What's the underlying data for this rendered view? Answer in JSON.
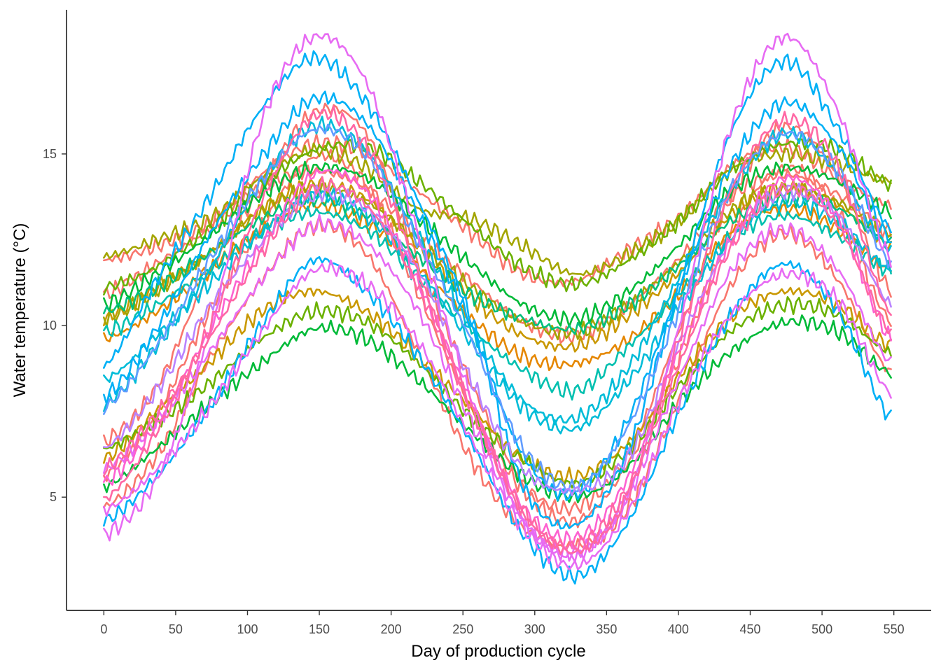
{
  "chart_data": {
    "type": "line",
    "xlabel": "Day of production cycle",
    "ylabel": "Water temperature (°C)",
    "xlim": [
      -26,
      576
    ],
    "ylim": [
      1.7,
      19.2
    ],
    "x_ticks": [
      0,
      50,
      100,
      150,
      200,
      250,
      300,
      350,
      400,
      450,
      500,
      550
    ],
    "y_ticks": [
      5,
      10,
      15
    ],
    "grid": false,
    "legend": "none",
    "x_range": [
      0,
      548
    ],
    "series": [
      {
        "color": "#F8766D",
        "values": [
          11.9,
          12.3,
          13.0,
          14.4,
          15.3,
          15.0,
          13.9,
          12.7,
          11.5,
          11.3,
          12.2,
          13.2,
          14.7,
          15.2,
          14.3,
          13.5
        ]
      },
      {
        "color": "#F8766D",
        "values": [
          6.6,
          8.2,
          11.5,
          14.0,
          16.2,
          15.6,
          11.8,
          8.3,
          5.4,
          4.7,
          6.3,
          10.0,
          13.9,
          15.8,
          14.3,
          11.0
        ]
      },
      {
        "color": "#F8766D",
        "values": [
          5.6,
          7.4,
          10.4,
          12.9,
          14.9,
          14.1,
          10.9,
          7.6,
          5.2,
          4.3,
          6.0,
          9.2,
          12.9,
          14.6,
          13.3,
          10.1
        ]
      },
      {
        "color": "#F8766D",
        "values": [
          4.7,
          6.2,
          9.0,
          11.3,
          12.9,
          12.1,
          9.2,
          6.1,
          4.1,
          3.6,
          4.7,
          8.0,
          11.3,
          12.7,
          11.3,
          8.6
        ]
      },
      {
        "color": "#F8766D",
        "values": [
          10.9,
          11.8,
          12.8,
          14.0,
          14.5,
          14.0,
          12.6,
          11.3,
          10.1,
          9.7,
          10.6,
          12.0,
          13.8,
          14.4,
          13.8,
          12.7
        ]
      },
      {
        "color": "#E58700",
        "values": [
          9.6,
          10.4,
          11.6,
          12.8,
          13.5,
          13.0,
          11.7,
          10.2,
          9.1,
          8.9,
          9.6,
          11.0,
          12.8,
          13.4,
          12.8,
          11.6
        ]
      },
      {
        "color": "#C99800",
        "values": [
          10.2,
          11.1,
          12.1,
          13.4,
          14.1,
          13.7,
          12.3,
          10.8,
          9.7,
          9.4,
          10.3,
          11.6,
          13.3,
          14.0,
          13.5,
          12.3
        ]
      },
      {
        "color": "#C99800",
        "values": [
          6.1,
          7.5,
          8.9,
          10.4,
          11.0,
          10.4,
          9.1,
          7.6,
          6.1,
          5.6,
          6.6,
          8.6,
          10.3,
          11.0,
          10.6,
          9.4
        ]
      },
      {
        "color": "#A3A500",
        "values": [
          12.0,
          12.5,
          13.1,
          14.3,
          15.1,
          14.6,
          13.4,
          13.1,
          12.3,
          11.5,
          12.1,
          13.1,
          14.6,
          15.0,
          14.7,
          14.2
        ]
      },
      {
        "color": "#A3A500",
        "values": [
          10.2,
          11.0,
          12.1,
          13.3,
          14.0,
          13.6,
          12.4,
          11.1,
          10.1,
          9.8,
          10.6,
          11.9,
          13.4,
          14.0,
          13.6,
          12.7
        ]
      },
      {
        "color": "#6BB100",
        "values": [
          11.1,
          11.7,
          12.8,
          14.1,
          15.1,
          15.2,
          14.2,
          12.9,
          11.7,
          11.2,
          11.9,
          13.1,
          14.6,
          15.3,
          15.1,
          14.1
        ]
      },
      {
        "color": "#6BB100",
        "values": [
          6.4,
          7.2,
          8.3,
          9.6,
          10.4,
          10.1,
          8.9,
          7.3,
          6.1,
          5.4,
          6.4,
          8.3,
          9.9,
          10.6,
          10.3,
          9.2
        ]
      },
      {
        "color": "#00BA38",
        "values": [
          10.6,
          11.5,
          12.6,
          13.8,
          14.6,
          14.3,
          13.1,
          11.8,
          10.6,
          10.2,
          11.0,
          12.4,
          14.0,
          14.6,
          14.2,
          13.3
        ]
      },
      {
        "color": "#00BA38",
        "values": [
          5.3,
          6.4,
          7.7,
          8.9,
          9.9,
          9.6,
          8.4,
          6.9,
          5.6,
          5.0,
          5.9,
          7.8,
          9.3,
          10.1,
          9.8,
          8.6
        ]
      },
      {
        "color": "#00BF7D",
        "values": [
          10.4,
          11.1,
          12.1,
          13.1,
          13.7,
          13.2,
          12.0,
          10.9,
          10.2,
          9.9,
          10.6,
          11.8,
          13.1,
          13.7,
          13.4,
          12.4
        ]
      },
      {
        "color": "#00C0AF",
        "values": [
          9.8,
          10.6,
          11.6,
          12.7,
          13.3,
          12.8,
          11.4,
          9.9,
          8.7,
          8.1,
          9.4,
          11.0,
          12.6,
          13.2,
          12.6,
          11.6
        ]
      },
      {
        "color": "#00BCD8",
        "values": [
          8.4,
          9.7,
          11.2,
          12.7,
          13.8,
          13.2,
          11.6,
          9.5,
          7.6,
          7.0,
          8.4,
          10.6,
          12.6,
          13.6,
          13.0,
          11.6
        ]
      },
      {
        "color": "#00BCD8",
        "values": [
          7.7,
          9.4,
          11.6,
          14.2,
          15.8,
          15.1,
          12.6,
          9.9,
          7.8,
          7.3,
          8.8,
          11.5,
          14.1,
          15.6,
          14.4,
          12.2
        ]
      },
      {
        "color": "#00B0F6",
        "values": [
          4.3,
          5.6,
          7.6,
          10.0,
          11.9,
          11.0,
          9.1,
          6.6,
          3.9,
          2.7,
          4.3,
          7.6,
          10.4,
          11.8,
          10.4,
          7.3
        ]
      },
      {
        "color": "#00B0F6",
        "values": [
          8.8,
          11.3,
          13.7,
          16.3,
          17.8,
          16.5,
          13.6,
          10.2,
          5.3,
          4.2,
          6.4,
          11.3,
          15.8,
          17.7,
          15.7,
          12.8
        ]
      },
      {
        "color": "#00B0F6",
        "values": [
          7.9,
          9.9,
          12.6,
          14.9,
          16.6,
          15.9,
          13.2,
          10.0,
          6.2,
          5.1,
          7.3,
          11.2,
          14.8,
          16.5,
          15.2,
          12.5
        ]
      },
      {
        "color": "#619CFF",
        "values": [
          7.6,
          9.4,
          11.9,
          14.2,
          15.7,
          15.0,
          12.4,
          9.6,
          6.4,
          5.3,
          7.1,
          10.6,
          14.1,
          15.6,
          14.5,
          11.8
        ]
      },
      {
        "color": "#B983FF",
        "values": [
          6.4,
          8.1,
          10.5,
          12.4,
          13.8,
          13.4,
          11.6,
          8.4,
          5.8,
          5.2,
          6.2,
          9.6,
          12.6,
          13.9,
          13.2,
          10.6
        ]
      },
      {
        "color": "#E76BF3",
        "values": [
          3.9,
          5.5,
          9.7,
          15.9,
          18.4,
          17.1,
          12.6,
          7.9,
          4.3,
          3.4,
          5.1,
          10.2,
          16.0,
          18.4,
          16.2,
          11.9
        ]
      },
      {
        "color": "#E76BF3",
        "values": [
          4.6,
          5.8,
          7.6,
          9.8,
          11.6,
          11.2,
          9.5,
          6.7,
          4.1,
          3.0,
          4.6,
          7.9,
          10.4,
          11.5,
          10.7,
          8.0
        ]
      },
      {
        "color": "#E76BF3",
        "values": [
          5.8,
          7.2,
          9.2,
          11.3,
          12.9,
          12.4,
          10.4,
          7.2,
          4.3,
          3.3,
          5.1,
          8.6,
          11.7,
          12.8,
          11.6,
          8.9
        ]
      },
      {
        "color": "#FD61D1",
        "values": [
          5.4,
          7.1,
          9.8,
          12.3,
          14.4,
          13.9,
          11.2,
          7.8,
          4.7,
          3.8,
          5.6,
          9.4,
          12.6,
          14.3,
          13.1,
          9.6
        ]
      },
      {
        "color": "#FF67A4",
        "values": [
          4.9,
          6.9,
          9.9,
          13.6,
          16.1,
          15.2,
          11.5,
          7.6,
          4.6,
          3.4,
          5.1,
          9.8,
          14.1,
          16.0,
          14.6,
          10.3
        ]
      },
      {
        "color": "#FF67A4",
        "values": [
          5.8,
          7.4,
          9.6,
          12.1,
          14.0,
          13.5,
          11.1,
          7.6,
          4.5,
          3.6,
          5.3,
          9.0,
          12.4,
          14.0,
          12.9,
          9.8
        ]
      }
    ]
  }
}
